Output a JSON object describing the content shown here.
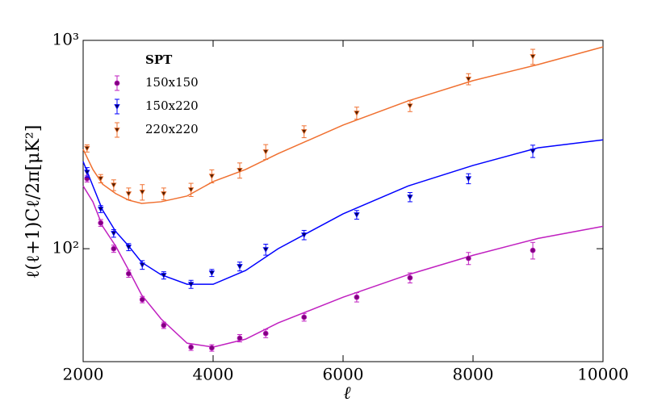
{
  "chart_data": {
    "type": "errorbar",
    "xlabel": "ℓ",
    "ylabel": "ℓ(ℓ+1)Cℓ/2π[μK²]",
    "legend_title": "SPT",
    "legend": "upper left",
    "log_y": true,
    "xlim": [
      2000,
      10000
    ],
    "xticks": [
      2000,
      4000,
      6000,
      8000,
      10000
    ],
    "ylim": [
      28.7,
      1000
    ],
    "yticks": [
      {
        "value": 100,
        "label": "10²"
      },
      {
        "value": 1000,
        "label": "10³"
      }
    ],
    "x": [
      2060,
      2270,
      2470,
      2700,
      2910,
      3240,
      3660,
      3980,
      4410,
      4810,
      5400,
      6210,
      7030,
      7930,
      8920
    ],
    "series": [
      {
        "name": "150x150",
        "color": "#c020c0",
        "marker_color": "#800080",
        "marker": "circle",
        "values": [
          217,
          133,
          100,
          75.9,
          57,
          42.9,
          33.7,
          33.4,
          37.2,
          39.2,
          46.9,
          58.5,
          72.5,
          89.9,
          98.2
        ],
        "errors": [
          8,
          5,
          4,
          3,
          2,
          1.5,
          1.2,
          1.2,
          1.5,
          1.8,
          2,
          3,
          4,
          6,
          9
        ],
        "model": {
          "x": [
            2000,
            2150,
            2300,
            2500,
            2700,
            2900,
            3200,
            3600,
            4000,
            4500,
            5000,
            6000,
            7000,
            8000,
            9000,
            10000
          ],
          "values": [
            200,
            168,
            128,
            103,
            79,
            60,
            46,
            35.2,
            33.7,
            36.8,
            44,
            58.5,
            75,
            93,
            112,
            128
          ]
        }
      },
      {
        "name": "150x220",
        "color": "#0000ff",
        "marker_color": "#000060",
        "marker": "triangle",
        "values": [
          233,
          155,
          118.5,
          101.8,
          83.6,
          74.5,
          67.5,
          76.5,
          82.2,
          99.1,
          116.4,
          145.5,
          177,
          217,
          294
        ],
        "errors": [
          12,
          6,
          5,
          4,
          4,
          3,
          3,
          3,
          4,
          6,
          6,
          7,
          9,
          12,
          20
        ],
        "model": {
          "x": [
            2000,
            2150,
            2300,
            2500,
            2700,
            2900,
            3200,
            3600,
            4000,
            4500,
            5000,
            6000,
            7000,
            8000,
            9000,
            10000
          ],
          "values": [
            262,
            200,
            153,
            121,
            103,
            86,
            75,
            67.5,
            67.5,
            78.6,
            100,
            147,
            200,
            251,
            305,
            333
          ]
        }
      },
      {
        "name": "220x220",
        "color": "#f07030",
        "marker_color": "#502000",
        "marker": "triangle",
        "values": [
          303,
          217,
          202,
          183.6,
          187,
          183.6,
          192,
          223,
          238,
          292,
          365,
          448,
          485,
          652,
          836
        ],
        "errors": [
          12,
          10,
          12,
          12,
          16,
          12,
          14,
          16,
          20,
          24,
          24,
          30,
          30,
          40,
          70
        ],
        "model": {
          "x": [
            2000,
            2150,
            2300,
            2500,
            2700,
            2900,
            3200,
            3600,
            4000,
            4500,
            5000,
            6000,
            7000,
            8000,
            9000,
            10000
          ],
          "values": [
            300,
            240,
            204,
            184,
            171,
            165,
            168,
            179,
            210,
            240,
            286,
            392,
            512,
            641,
            765,
            930
          ]
        }
      }
    ]
  }
}
